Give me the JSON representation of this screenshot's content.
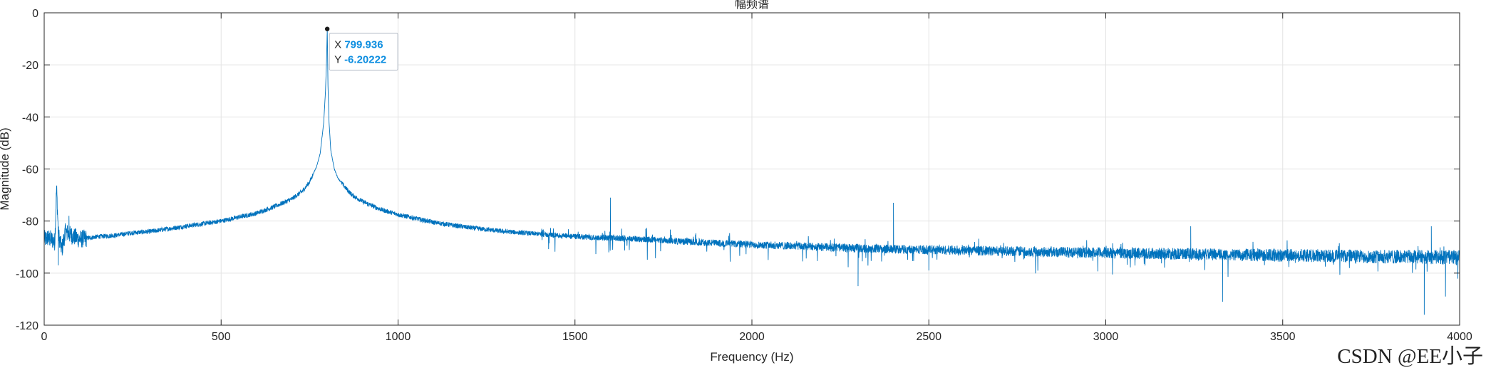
{
  "chart_data": {
    "type": "line",
    "title": "幅频谱",
    "xlabel": "Frequency (Hz)",
    "ylabel": "Magnitude (dB)",
    "xlim": [
      0,
      4000
    ],
    "ylim": [
      -120,
      0
    ],
    "xticks": [
      0,
      500,
      1000,
      1500,
      2000,
      2500,
      3000,
      3500,
      4000
    ],
    "yticks": [
      0,
      -20,
      -40,
      -60,
      -80,
      -100,
      -120
    ],
    "grid": true,
    "line_color": "#0072bd",
    "series": [
      {
        "name": "",
        "x": [
          0,
          10,
          20,
          30,
          35,
          40,
          50,
          60,
          70,
          100,
          150,
          200,
          250,
          300,
          350,
          400,
          450,
          500,
          550,
          600,
          650,
          700,
          730,
          750,
          770,
          780,
          790,
          795,
          798,
          799.936,
          802,
          805,
          810,
          820,
          830,
          850,
          870,
          900,
          950,
          1000,
          1100,
          1200,
          1300,
          1400,
          1500,
          1600,
          1700,
          1800,
          1900,
          2000,
          2100,
          2200,
          2300,
          2400,
          2500,
          2600,
          2700,
          2800,
          2900,
          3000,
          3100,
          3200,
          3300,
          3400,
          3500,
          3600,
          3700,
          3800,
          3900,
          4000
        ],
        "y": [
          -87,
          -86.5,
          -87,
          -88,
          -67,
          -85,
          -91,
          -84,
          -85,
          -87,
          -86,
          -85.5,
          -84.5,
          -84,
          -83,
          -82,
          -81,
          -80,
          -78.5,
          -77,
          -74.5,
          -71.5,
          -68.5,
          -65,
          -59,
          -54,
          -42,
          -30,
          -18,
          -6.2,
          -28,
          -42,
          -53,
          -60,
          -63.5,
          -67,
          -70,
          -72.5,
          -75.5,
          -77.5,
          -80.5,
          -82.5,
          -84,
          -85,
          -86,
          -86.5,
          -87,
          -87.8,
          -88.5,
          -89,
          -89.5,
          -90,
          -90.5,
          -90.8,
          -91,
          -91.3,
          -91.5,
          -91.7,
          -92,
          -92.2,
          -92.4,
          -92.6,
          -92.8,
          -93,
          -93.2,
          -93.3,
          -93.5,
          -93.7,
          -93.8,
          -94
        ]
      }
    ],
    "spikes": [
      {
        "x": 35,
        "y": -67
      },
      {
        "x": 40,
        "y": -97
      },
      {
        "x": 70,
        "y": -78
      },
      {
        "x": 1600,
        "y": -71
      },
      {
        "x": 1700,
        "y": -83
      },
      {
        "x": 2300,
        "y": -105
      },
      {
        "x": 2400,
        "y": -73
      },
      {
        "x": 2500,
        "y": -99
      },
      {
        "x": 3240,
        "y": -82
      },
      {
        "x": 3330,
        "y": -111
      },
      {
        "x": 3900,
        "y": -116
      },
      {
        "x": 3920,
        "y": -82
      },
      {
        "x": 3960,
        "y": -109
      }
    ],
    "datatip": {
      "x_label": "X",
      "x_value": "799.936",
      "y_label": "Y",
      "y_value": "-6.20222",
      "x": 799.936,
      "y": -6.20222
    }
  },
  "watermark": "CSDN @EE小子"
}
